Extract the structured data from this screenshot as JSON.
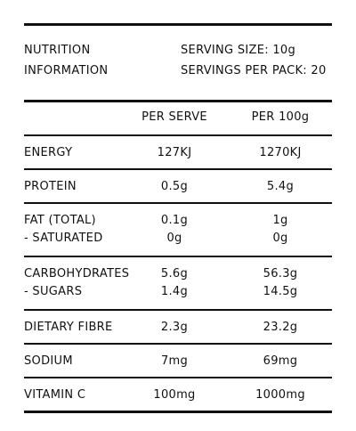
{
  "header": {
    "title": [
      "NUTRITION",
      "INFORMATION"
    ],
    "serving_size": "SERVING SIZE: 10g",
    "servings_per_pack": "SERVINGS PER PACK: 20"
  },
  "table": {
    "columns": [
      "PER SERVE",
      "PER 100g"
    ],
    "rows": [
      [
        [
          "ENERGY",
          "127KJ",
          "1270KJ"
        ]
      ],
      [
        [
          "PROTEIN",
          "0.5g",
          "5.4g"
        ]
      ],
      [
        [
          "FAT (TOTAL)",
          "0.1g",
          "1g"
        ],
        [
          "- SATURATED",
          "0g",
          "0g"
        ]
      ],
      [
        [
          "CARBOHYDRATES",
          "5.6g",
          "56.3g"
        ],
        [
          "- SUGARS",
          "1.4g",
          "14.5g"
        ]
      ],
      [
        [
          "DIETARY FIBRE",
          "2.3g",
          "23.2g"
        ]
      ],
      [
        [
          "SODIUM",
          "7mg",
          "69mg"
        ]
      ],
      [
        [
          "VITAMIN C",
          "100mg",
          "1000mg"
        ]
      ]
    ]
  }
}
